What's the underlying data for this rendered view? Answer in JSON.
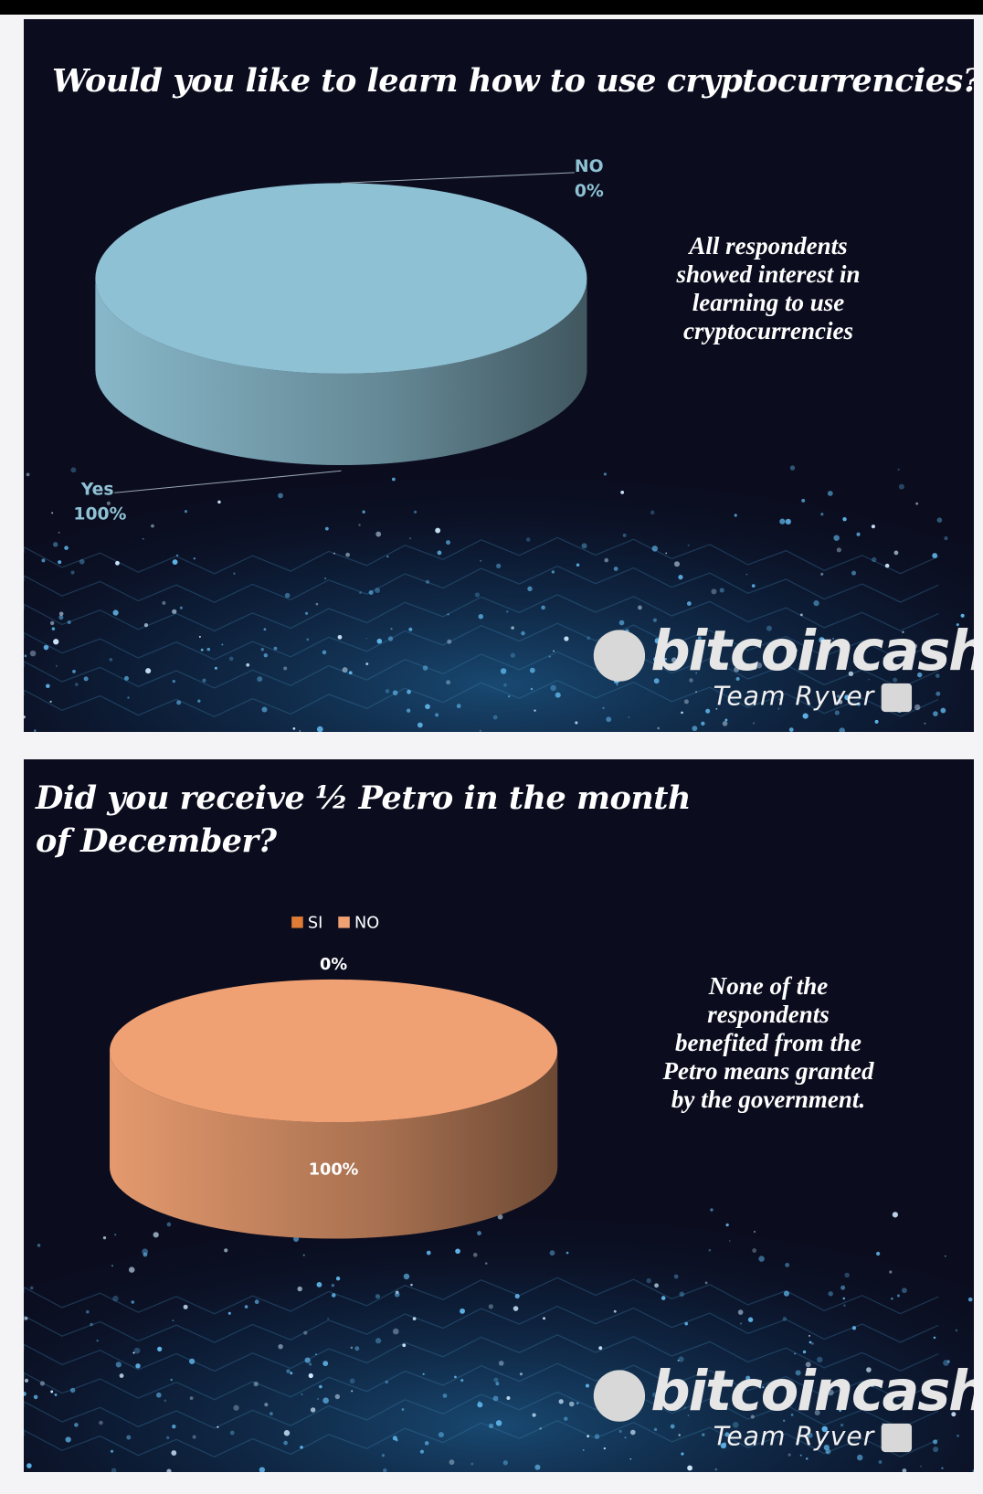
{
  "chart_data": [
    {
      "type": "pie",
      "title": "Would you like to learn how to use cryptocurrencies?",
      "categories": [
        "NO",
        "Yes"
      ],
      "values": [
        0,
        100
      ],
      "value_labels": [
        "0%",
        "100%"
      ],
      "colors": [
        "#8fc1d4",
        "#8fc1d4"
      ],
      "annotation": [
        "All respondents",
        "showed interest in",
        "learning to use",
        "cryptocurrencies"
      ]
    },
    {
      "type": "pie",
      "title": "Did you receive ½ Petro in the month of December?",
      "categories": [
        "SI",
        "NO"
      ],
      "values": [
        0,
        100
      ],
      "value_labels": [
        "0%",
        "100%"
      ],
      "colors": [
        "#e07b35",
        "#f0a173"
      ],
      "legend": "top",
      "annotation": [
        "None of the",
        "respondents",
        "benefited from the",
        "Petro means granted",
        "by the government."
      ]
    }
  ],
  "branding": [
    {
      "brand": "bitcoincash",
      "team": "Team Ryver"
    },
    {
      "brand": "bitcoincash",
      "team": "Team Ryver"
    }
  ]
}
